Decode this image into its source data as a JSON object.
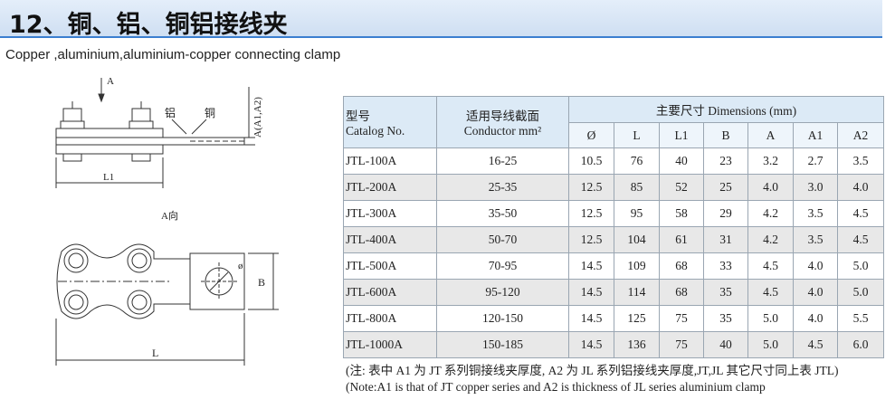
{
  "header": {
    "title": "12、铜、铝、铜铝接线夹",
    "subtitle": "Copper ,aluminium,aluminium-copper connecting clamp"
  },
  "drawing": {
    "arrow_label": "A",
    "height_label": "A(A1,A2)",
    "aluminium_label": "铝",
    "copper_label": "铜",
    "l1_label": "L1",
    "view_label": "A向",
    "diameter_label": "ø",
    "b_label": "B",
    "l_label": "L"
  },
  "table": {
    "col1_cn": "型号",
    "col1_en": "Catalog No.",
    "col2_cn": "适用导线截面",
    "col2_en": "Conductor mm²",
    "dims_header": "主要尺寸 Dimensions (mm)",
    "dim_cols": [
      "Ø",
      "L",
      "L1",
      "B",
      "A",
      "A1",
      "A2"
    ],
    "rows": [
      {
        "catalog": "JTL-100A",
        "conductor": "16-25",
        "d": "10.5",
        "l": "76",
        "l1": "40",
        "b": "23",
        "a": "3.2",
        "a1": "2.7",
        "a2": "3.5"
      },
      {
        "catalog": "JTL-200A",
        "conductor": "25-35",
        "d": "12.5",
        "l": "85",
        "l1": "52",
        "b": "25",
        "a": "4.0",
        "a1": "3.0",
        "a2": "4.0"
      },
      {
        "catalog": "JTL-300A",
        "conductor": "35-50",
        "d": "12.5",
        "l": "95",
        "l1": "58",
        "b": "29",
        "a": "4.2",
        "a1": "3.5",
        "a2": "4.5"
      },
      {
        "catalog": "JTL-400A",
        "conductor": "50-70",
        "d": "12.5",
        "l": "104",
        "l1": "61",
        "b": "31",
        "a": "4.2",
        "a1": "3.5",
        "a2": "4.5"
      },
      {
        "catalog": "JTL-500A",
        "conductor": "70-95",
        "d": "14.5",
        "l": "109",
        "l1": "68",
        "b": "33",
        "a": "4.5",
        "a1": "4.0",
        "a2": "5.0"
      },
      {
        "catalog": "JTL-600A",
        "conductor": "95-120",
        "d": "14.5",
        "l": "114",
        "l1": "68",
        "b": "35",
        "a": "4.5",
        "a1": "4.0",
        "a2": "5.0"
      },
      {
        "catalog": "JTL-800A",
        "conductor": "120-150",
        "d": "14.5",
        "l": "125",
        "l1": "75",
        "b": "35",
        "a": "5.0",
        "a1": "4.0",
        "a2": "5.5"
      },
      {
        "catalog": "JTL-1000A",
        "conductor": "150-185",
        "d": "14.5",
        "l": "136",
        "l1": "75",
        "b": "40",
        "a": "5.0",
        "a1": "4.5",
        "a2": "6.0"
      }
    ]
  },
  "notes": {
    "cn": "(注: 表中 A1 为 JT 系列铜接线夹厚度, A2 为 JL 系列铝接线夹厚度,JT,JL 其它尺寸同上表 JTL)",
    "en": "(Note:A1 is that of JT copper series and A2 is thickness of JL series aluminium  clamp"
  }
}
